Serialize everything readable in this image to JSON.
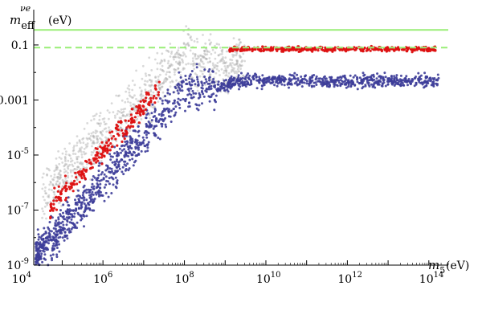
{
  "chart_data": {
    "type": "scatter",
    "title": "",
    "xlabel": {
      "symbol": "m",
      "subscript": "5",
      "unit": "(eV)"
    },
    "ylabel": {
      "symbol": "m",
      "subscript": "eff",
      "superscript": "νe",
      "unit": "(eV)"
    },
    "x_scale": "log",
    "y_scale": "log",
    "xlim": [
      20000,
      300000000000000
    ],
    "ylim": [
      1e-09,
      0.5
    ],
    "grid": false,
    "legend": "none",
    "x_ticks": [
      {
        "value": 10000,
        "base": "10",
        "exp": "4"
      },
      {
        "value": 1000000,
        "base": "10",
        "exp": "6"
      },
      {
        "value": 100000000,
        "base": "10",
        "exp": "8"
      },
      {
        "value": 10000000000,
        "base": "10",
        "exp": "10"
      },
      {
        "value": 1000000000000,
        "base": "10",
        "exp": "12"
      },
      {
        "value": 100000000000000,
        "base": "10",
        "exp": "14"
      }
    ],
    "y_ticks": [
      {
        "value": 1e-09,
        "base": "10",
        "exp": "-9"
      },
      {
        "value": 1e-07,
        "base": "10",
        "exp": "-7"
      },
      {
        "value": 1e-05,
        "base": "10",
        "exp": "-5"
      },
      {
        "value": 0.001,
        "label": "0.001"
      },
      {
        "value": 0.1,
        "label": "0.1"
      }
    ],
    "reference_lines": [
      {
        "y": 0.35,
        "style": "solid",
        "color": "#99ee77"
      },
      {
        "y": 0.08,
        "style": "dashed",
        "color": "#99ee77"
      }
    ],
    "series": [
      {
        "color": "#aaaaaa",
        "description_points": [
          [
            40000,
            3e-07
          ],
          [
            200000,
            0.0001
          ],
          [
            1000000,
            0.003
          ],
          [
            8000000,
            0.02
          ],
          [
            30000000,
            0.03
          ],
          [
            100000000,
            0.005
          ],
          [
            300000000,
            0.03
          ],
          [
            1000000000,
            0.06
          ]
        ]
      },
      {
        "color": "#3d3d99",
        "description_points": [
          [
            25000,
            1e-09
          ],
          [
            80000,
            1e-08
          ],
          [
            300000,
            2e-07
          ],
          [
            1000000,
            2e-06
          ],
          [
            5000000,
            0.0001
          ],
          [
            30000000,
            0.001
          ],
          [
            300000000,
            0.003
          ],
          [
            3000000000,
            0.005
          ],
          [
            100000000000,
            0.004
          ],
          [
            10000000000000,
            0.004
          ],
          [
            200000000000000,
            0.004
          ]
        ]
      },
      {
        "color": "#dd1111",
        "description_points": [
          [
            50000,
            8e-08
          ],
          [
            150000,
            2e-06
          ],
          [
            500000,
            3e-05
          ],
          [
            2000000,
            0.0003
          ],
          [
            8000000,
            0.004
          ],
          [
            2000000000,
            0.07
          ],
          [
            100000000000,
            0.08
          ],
          [
            20000000000000,
            0.08
          ]
        ]
      }
    ]
  }
}
